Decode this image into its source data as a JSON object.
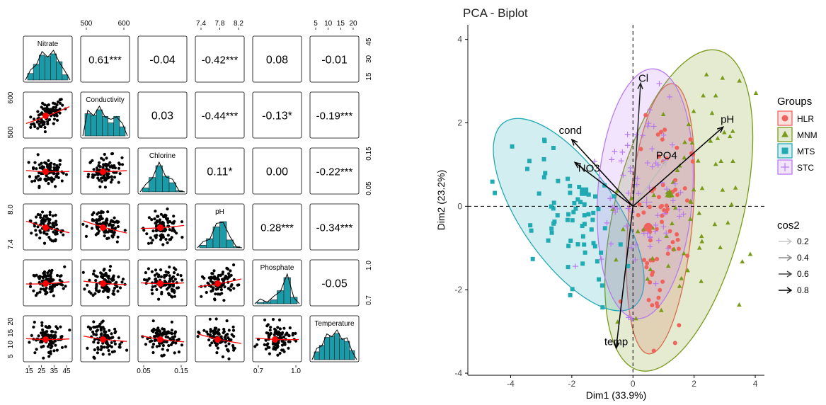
{
  "chart_data": [
    {
      "type": "scatter",
      "kind": "pairs-correlation-matrix",
      "variables": [
        "Nitrate",
        "Conductivity",
        "Chlorine",
        "pH",
        "Phosphate",
        "Temperature"
      ],
      "axis_ticks": {
        "Nitrate": [
          15,
          25,
          35,
          45
        ],
        "Conductivity": [
          500,
          600
        ],
        "Chlorine": [
          0.05,
          0.15
        ],
        "pH": [
          7.4,
          8.0
        ],
        "Phosphate": [
          0.7,
          1.0
        ],
        "Temperature": [
          5,
          10,
          15,
          20
        ]
      },
      "top_ticks": {
        "Conductivity": [
          "500",
          "600"
        ],
        "pH": [
          "7.4",
          "7.8",
          "8.2"
        ],
        "Temperature": [
          "5",
          "10",
          "15",
          "20"
        ]
      },
      "right_ticks": {
        "Nitrate": [
          "15",
          "30",
          "45"
        ],
        "Chlorine": [
          "0.05",
          "0.15"
        ],
        "Phosphate": [
          "0.7",
          "1.0"
        ]
      },
      "left_ticks": {
        "Conductivity": [
          "500",
          "600"
        ],
        "pH": [
          "7.4",
          "8.0"
        ],
        "Temperature": [
          "5",
          "10",
          "15",
          "20"
        ]
      },
      "bottom_ticks": {
        "Nitrate": [
          "15",
          "25",
          "35",
          "45"
        ],
        "Chlorine": [
          "0.05",
          "0.15"
        ],
        "Phosphate": [
          "0.7",
          "1.0"
        ]
      },
      "correlations": [
        {
          "row": 0,
          "col": 1,
          "label": "0.61***"
        },
        {
          "row": 0,
          "col": 2,
          "label": "-0.04"
        },
        {
          "row": 0,
          "col": 3,
          "label": "-0.42***"
        },
        {
          "row": 0,
          "col": 4,
          "label": "0.08"
        },
        {
          "row": 0,
          "col": 5,
          "label": "-0.01"
        },
        {
          "row": 1,
          "col": 2,
          "label": "0.03"
        },
        {
          "row": 1,
          "col": 3,
          "label": "-0.44***"
        },
        {
          "row": 1,
          "col": 4,
          "label": "-0.13*"
        },
        {
          "row": 1,
          "col": 5,
          "label": "-0.19***"
        },
        {
          "row": 2,
          "col": 3,
          "label": "0.11*"
        },
        {
          "row": 2,
          "col": 4,
          "label": "0.00"
        },
        {
          "row": 2,
          "col": 5,
          "label": "-0.22***"
        },
        {
          "row": 3,
          "col": 4,
          "label": "0.28***"
        },
        {
          "row": 3,
          "col": 5,
          "label": "-0.34***"
        },
        {
          "row": 4,
          "col": 5,
          "label": "-0.05"
        }
      ],
      "histograms": {
        "Nitrate": [
          0.25,
          0.6,
          0.95,
          0.9,
          1.0,
          0.7,
          0.2
        ],
        "Conductivity": [
          0.85,
          0.8,
          1.0,
          0.75,
          0.5,
          0.75,
          0.35
        ],
        "Chlorine": [
          0.15,
          0.55,
          1.0,
          0.6,
          0.35,
          0.05
        ],
        "pH": [
          0.1,
          0.35,
          0.8,
          1.0,
          0.3,
          0.05
        ],
        "Phosphate": [
          0.05,
          0.08,
          0.15,
          0.5,
          1.0,
          0.25
        ],
        "Temperature": [
          0.3,
          0.55,
          0.85,
          0.9,
          1.0,
          0.8,
          0.7,
          0.35
        ]
      },
      "colors": {
        "bar": "#1b9ba8",
        "point": "#000000",
        "smooth": "#ff0000",
        "centroid": "#ff0000"
      }
    },
    {
      "type": "scatter",
      "kind": "pca-biplot",
      "title": "PCA - Biplot",
      "xlabel": "Dim1 (33.9%)",
      "ylabel": "Dim2 (23.2%)",
      "xlim": [
        -5.4,
        4.3
      ],
      "ylim": [
        -4.05,
        4.35
      ],
      "xticks": [
        -4,
        -2,
        0,
        2,
        4
      ],
      "yticks": [
        -4,
        -2,
        0,
        2,
        4
      ],
      "legend_groups": {
        "title": "Groups",
        "items": [
          {
            "name": "HLR",
            "color": "#f0635c",
            "shape": "circle"
          },
          {
            "name": "MNM",
            "color": "#7a9a1a",
            "shape": "triangle"
          },
          {
            "name": "MTS",
            "color": "#20aab3",
            "shape": "square"
          },
          {
            "name": "STC",
            "color": "#b77aee",
            "shape": "plus"
          }
        ],
        "placement": "right"
      },
      "legend_cos2": {
        "title": "cos2",
        "items": [
          {
            "label": "0.2",
            "color": "#c8c8c8"
          },
          {
            "label": "0.4",
            "color": "#8c8c8c"
          },
          {
            "label": "0.6",
            "color": "#444444"
          },
          {
            "label": "0.8",
            "color": "#000000"
          }
        ]
      },
      "ellipses": [
        {
          "group": "HLR",
          "cx": 0.9,
          "cy": -0.3,
          "rx": 1.05,
          "ry": 3.25,
          "angle": 5
        },
        {
          "group": "MNM",
          "cx": 1.5,
          "cy": -0.1,
          "rx": 2.1,
          "ry": 3.95,
          "angle": 14
        },
        {
          "group": "MTS",
          "cx": -2.1,
          "cy": -0.2,
          "rx": 1.55,
          "ry": 2.7,
          "angle": -35
        },
        {
          "group": "STC",
          "cx": 0.4,
          "cy": 0.3,
          "rx": 1.55,
          "ry": 3.0,
          "angle": 4
        }
      ],
      "centroids": [
        {
          "group": "HLR",
          "x": 0.5,
          "y": -0.5
        },
        {
          "group": "MNM",
          "x": 1.2,
          "y": 0.3
        },
        {
          "group": "MTS",
          "x": -1.6,
          "y": 0.35
        },
        {
          "group": "STC",
          "x": 0.45,
          "y": 0.1
        }
      ],
      "loadings": [
        {
          "name": "cond",
          "x": -2.0,
          "y": 1.6,
          "cos2": 0.8
        },
        {
          "name": "NO3",
          "x": -1.9,
          "y": 1.05,
          "cos2": 0.8
        },
        {
          "name": "Cl",
          "x": 0.25,
          "y": 2.95,
          "cos2": 0.6
        },
        {
          "name": "PO4",
          "x": 1.1,
          "y": 1.1,
          "cos2": 0.2
        },
        {
          "name": "pH",
          "x": 2.95,
          "y": 1.9,
          "cos2": 0.8
        },
        {
          "name": "temp",
          "x": -0.55,
          "y": -3.4,
          "cos2": 0.8
        }
      ]
    }
  ]
}
